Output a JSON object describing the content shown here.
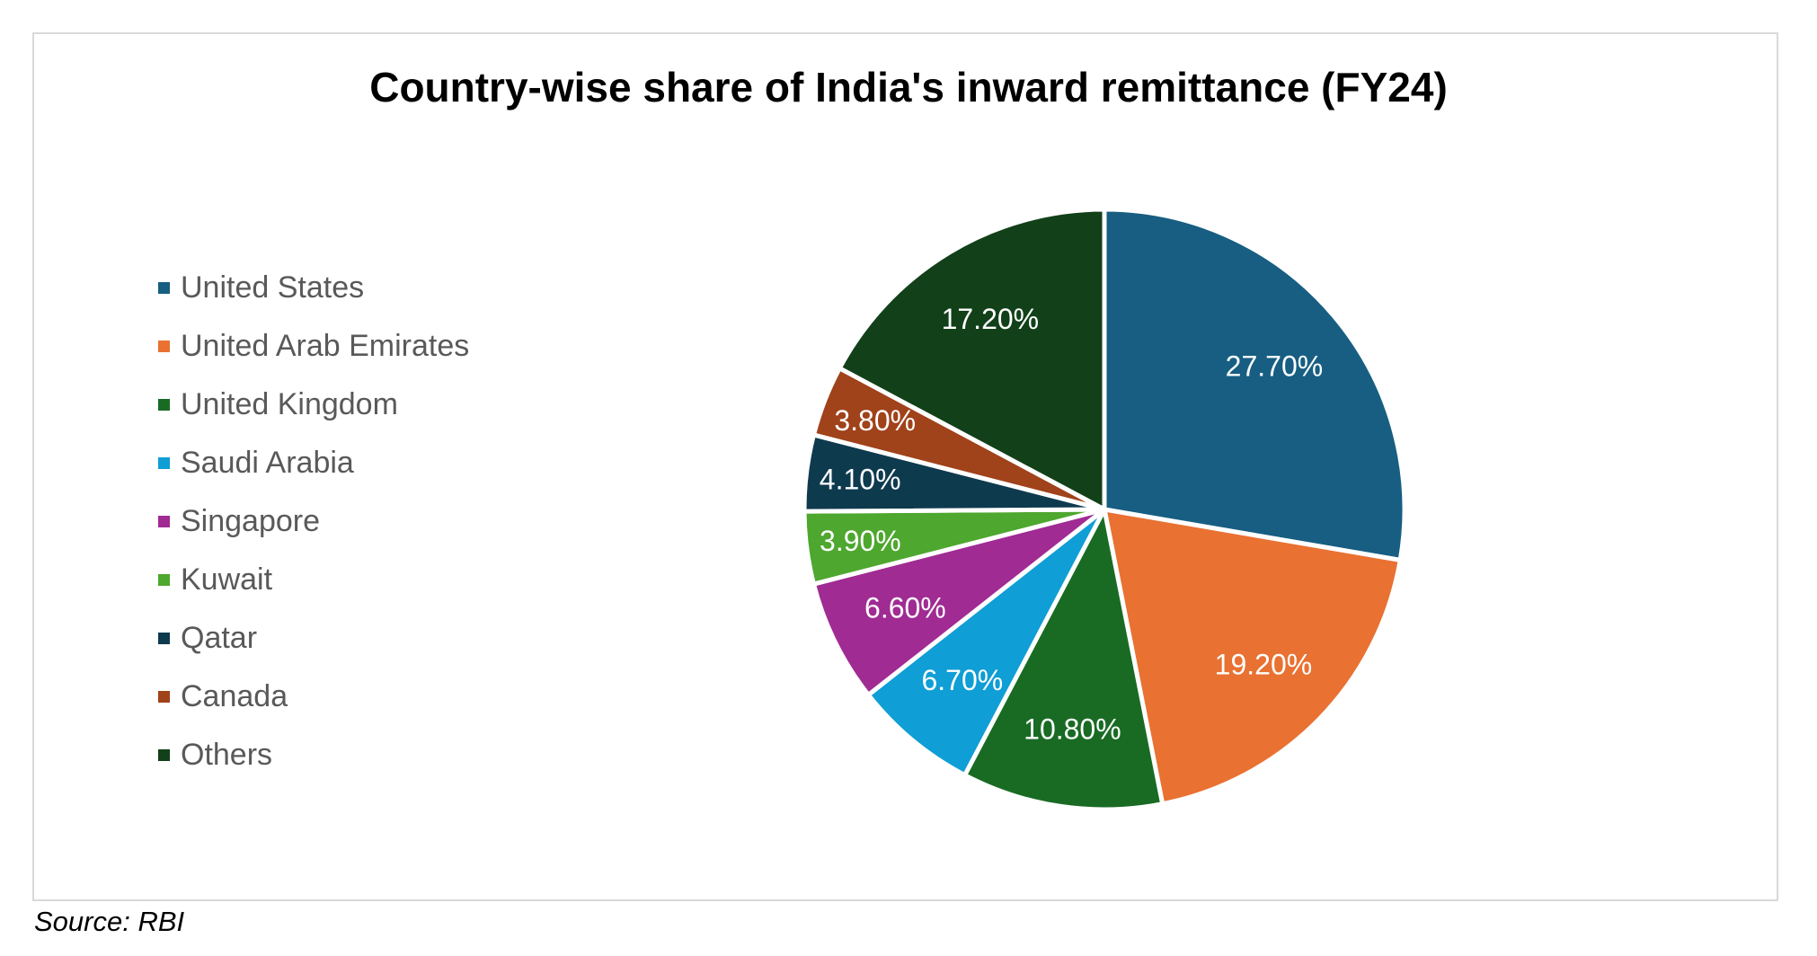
{
  "chart_data": {
    "type": "pie",
    "title": "Country-wise share of India's inward remittance (FY24)",
    "categories": [
      "United States",
      "United Arab Emirates",
      "United Kingdom",
      "Saudi Arabia",
      "Singapore",
      "Kuwait",
      "Qatar",
      "Canada",
      "Others"
    ],
    "values": [
      27.7,
      19.2,
      10.8,
      6.7,
      6.6,
      3.9,
      4.1,
      3.8,
      17.2
    ],
    "data_labels": [
      "27.70%",
      "19.20%",
      "10.80%",
      "6.70%",
      "6.60%",
      "3.90%",
      "4.10%",
      "3.80%",
      "17.20%"
    ],
    "colors": [
      "#175E82",
      "#E97132",
      "#196B24",
      "#0F9ED5",
      "#A02B93",
      "#4EA72E",
      "#0E3A4E",
      "#A0421A",
      "#124019"
    ],
    "legend_position": "left",
    "start_angle": "12 o'clock",
    "direction": "clockwise"
  },
  "source": "Source: RBI"
}
